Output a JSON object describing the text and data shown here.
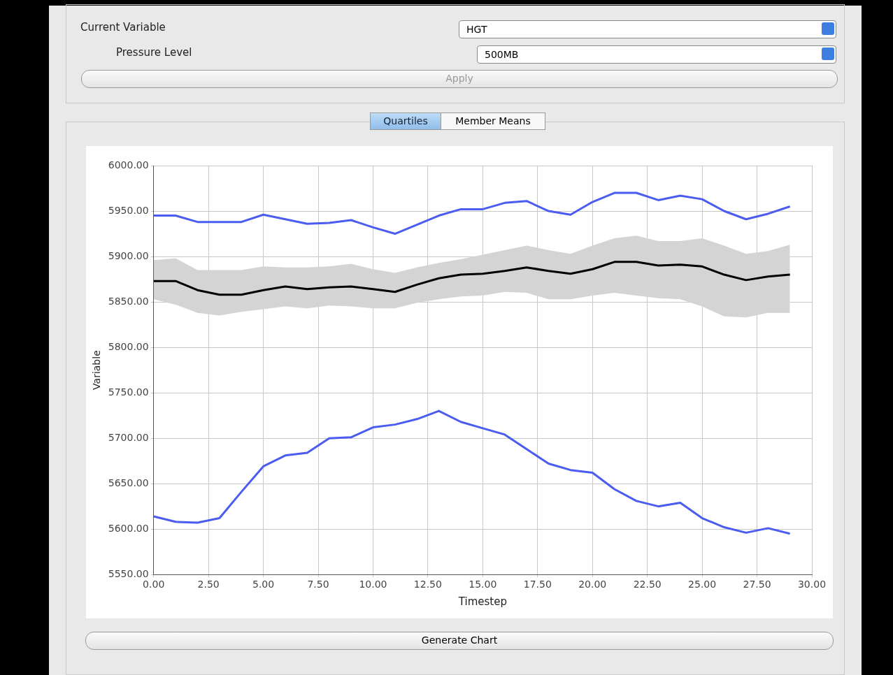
{
  "chart_data": {
    "type": "line",
    "xlabel": "Timestep",
    "ylabel": "Variable",
    "x": [
      0,
      1,
      2,
      3,
      4,
      5,
      6,
      7,
      8,
      9,
      10,
      11,
      12,
      13,
      14,
      15,
      16,
      17,
      18,
      19,
      20,
      21,
      22,
      23,
      24,
      25,
      26,
      27,
      28,
      29
    ],
    "series": [
      {
        "color": "#4b5cf0",
        "values": [
          5945,
          5945,
          5938,
          5938,
          5938,
          5946,
          5941,
          5936,
          5937,
          5940,
          5932,
          5925,
          5935,
          5945,
          5952,
          5952,
          5959,
          5961,
          5950,
          5946,
          5960,
          5970,
          5970,
          5962,
          5967,
          5963,
          5950,
          5941,
          5947,
          5955
        ]
      },
      {
        "color": "#000000",
        "values": [
          5873,
          5873,
          5863,
          5858,
          5858,
          5863,
          5867,
          5864,
          5866,
          5867,
          5864,
          5861,
          5869,
          5876,
          5880,
          5881,
          5884,
          5888,
          5884,
          5881,
          5886,
          5894,
          5894,
          5890,
          5891,
          5889,
          5880,
          5874,
          5878,
          5880
        ],
        "lower": [
          5853,
          5847,
          5838,
          5835,
          5839,
          5842,
          5845,
          5843,
          5846,
          5845,
          5843,
          5843,
          5849,
          5853,
          5856,
          5857,
          5861,
          5860,
          5853,
          5853,
          5857,
          5860,
          5857,
          5854,
          5853,
          5845,
          5834,
          5833,
          5838,
          5838
        ],
        "upper": [
          5896,
          5898,
          5885,
          5885,
          5885,
          5889,
          5888,
          5888,
          5889,
          5892,
          5886,
          5882,
          5888,
          5893,
          5897,
          5902,
          5907,
          5912,
          5907,
          5903,
          5912,
          5920,
          5923,
          5917,
          5917,
          5920,
          5912,
          5903,
          5906,
          5913
        ]
      },
      {
        "color": "#4b5cf0",
        "values": [
          5614,
          5608,
          5607,
          5612,
          5641,
          5669,
          5681,
          5684,
          5700,
          5701,
          5712,
          5715,
          5721,
          5730,
          5718,
          5711,
          5704,
          5688,
          5672,
          5665,
          5662,
          5644,
          5631,
          5625,
          5629,
          5612,
          5602,
          5596,
          5601,
          5595
        ]
      }
    ],
    "xlim": [
      0,
      30
    ],
    "xticks": [
      {
        "value": 0,
        "label": "0.00"
      },
      {
        "value": 2.5,
        "label": "2.50"
      },
      {
        "value": 5,
        "label": "5.00"
      },
      {
        "value": 7.5,
        "label": "7.50"
      },
      {
        "value": 10,
        "label": "10.00"
      },
      {
        "value": 12.5,
        "label": "12.50"
      },
      {
        "value": 15,
        "label": "15.00"
      },
      {
        "value": 17.5,
        "label": "17.50"
      },
      {
        "value": 20,
        "label": "20.00"
      },
      {
        "value": 22.5,
        "label": "22.50"
      },
      {
        "value": 25,
        "label": "25.00"
      },
      {
        "value": 27.5,
        "label": "27.50"
      },
      {
        "value": 30,
        "label": "30.00"
      }
    ],
    "ylim": [
      5550,
      6000
    ],
    "yticks": [
      {
        "value": 5550,
        "label": "5550.00"
      },
      {
        "value": 5600,
        "label": "5600.00"
      },
      {
        "value": 5650,
        "label": "5650.00"
      },
      {
        "value": 5700,
        "label": "5700.00"
      },
      {
        "value": 5750,
        "label": "5750.00"
      },
      {
        "value": 5800,
        "label": "5800.00"
      },
      {
        "value": 5850,
        "label": "5850.00"
      },
      {
        "value": 5900,
        "label": "5900.00"
      },
      {
        "value": 5950,
        "label": "5950.00"
      },
      {
        "value": 6000,
        "label": "6000.00"
      }
    ],
    "grid": true,
    "legend": false,
    "marker": "none",
    "line_style": "solid",
    "annotations": [
      "Current Variable",
      "HGT",
      "Pressure Level",
      "500MB",
      "Apply",
      "Quartiles",
      "Member Means",
      "Generate Chart"
    ]
  }
}
